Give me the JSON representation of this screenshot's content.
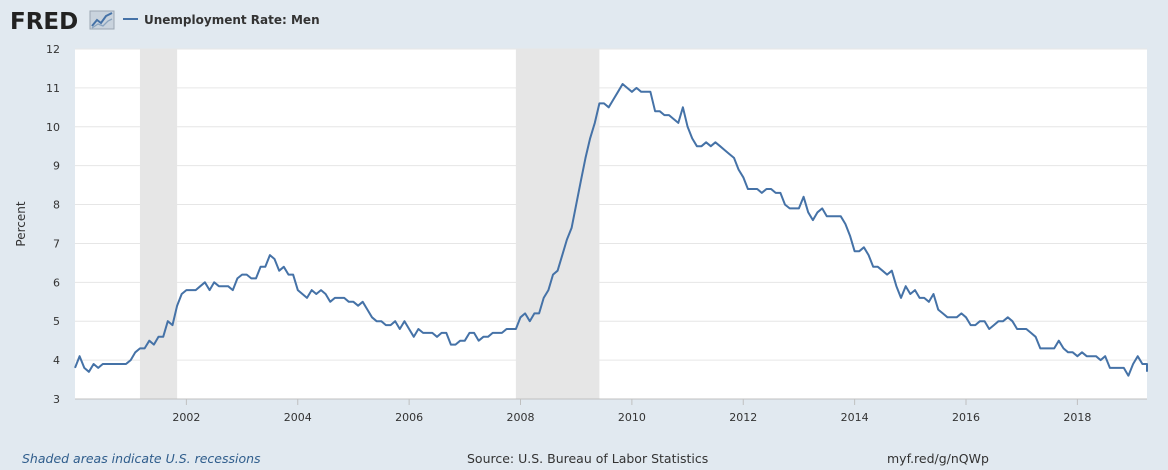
{
  "header": {
    "logo_text": "FRED",
    "legend_label": "Unemployment Rate: Men"
  },
  "footer": {
    "recession_note": "Shaded areas indicate U.S. recessions",
    "source": "Source: U.S. Bureau of Labor Statistics",
    "short_url": "myf.red/g/nQWp"
  },
  "colors": {
    "background": "#e1e9f0",
    "plot_area": "#ffffff",
    "series": "#4572a7",
    "recession_shade": "#e6e6e6",
    "gridline": "#e6e6e6"
  },
  "chart_data": {
    "type": "line",
    "title": "",
    "xlabel": "",
    "ylabel": "Percent",
    "ylim": [
      3,
      12
    ],
    "xlim": [
      "2000-01",
      "2019-04"
    ],
    "grid": true,
    "legend": "top-left",
    "yticks": [
      "3",
      "4",
      "5",
      "6",
      "7",
      "8",
      "9",
      "10",
      "11",
      "12"
    ],
    "xticks": [
      {
        "date": "2002-01",
        "label": "2002"
      },
      {
        "date": "2004-01",
        "label": "2004"
      },
      {
        "date": "2006-01",
        "label": "2006"
      },
      {
        "date": "2008-01",
        "label": "2008"
      },
      {
        "date": "2010-01",
        "label": "2010"
      },
      {
        "date": "2012-01",
        "label": "2012"
      },
      {
        "date": "2014-01",
        "label": "2014"
      },
      {
        "date": "2016-01",
        "label": "2016"
      },
      {
        "date": "2018-01",
        "label": "2018"
      }
    ],
    "recessions": [
      {
        "start": "2001-03",
        "end": "2001-11"
      },
      {
        "start": "2007-12",
        "end": "2009-06"
      }
    ],
    "series": [
      {
        "name": "Unemployment Rate: Men",
        "points": [
          [
            "2000-01",
            3.8
          ],
          [
            "2000-02",
            4.1
          ],
          [
            "2000-03",
            3.8
          ],
          [
            "2000-04",
            3.7
          ],
          [
            "2000-05",
            3.9
          ],
          [
            "2000-06",
            3.8
          ],
          [
            "2000-07",
            3.9
          ],
          [
            "2000-08",
            3.9
          ],
          [
            "2000-09",
            3.9
          ],
          [
            "2000-10",
            3.9
          ],
          [
            "2000-11",
            3.9
          ],
          [
            "2000-12",
            3.9
          ],
          [
            "2001-01",
            4.0
          ],
          [
            "2001-02",
            4.2
          ],
          [
            "2001-03",
            4.3
          ],
          [
            "2001-04",
            4.3
          ],
          [
            "2001-05",
            4.5
          ],
          [
            "2001-06",
            4.4
          ],
          [
            "2001-07",
            4.6
          ],
          [
            "2001-08",
            4.6
          ],
          [
            "2001-09",
            5.0
          ],
          [
            "2001-10",
            4.9
          ],
          [
            "2001-11",
            5.4
          ],
          [
            "2001-12",
            5.7
          ],
          [
            "2002-01",
            5.8
          ],
          [
            "2002-02",
            5.8
          ],
          [
            "2002-03",
            5.8
          ],
          [
            "2002-04",
            5.9
          ],
          [
            "2002-05",
            6.0
          ],
          [
            "2002-06",
            5.8
          ],
          [
            "2002-07",
            6.0
          ],
          [
            "2002-08",
            5.9
          ],
          [
            "2002-09",
            5.9
          ],
          [
            "2002-10",
            5.9
          ],
          [
            "2002-11",
            5.8
          ],
          [
            "2002-12",
            6.1
          ],
          [
            "2003-01",
            6.2
          ],
          [
            "2003-02",
            6.2
          ],
          [
            "2003-03",
            6.1
          ],
          [
            "2003-04",
            6.1
          ],
          [
            "2003-05",
            6.4
          ],
          [
            "2003-06",
            6.4
          ],
          [
            "2003-07",
            6.7
          ],
          [
            "2003-08",
            6.6
          ],
          [
            "2003-09",
            6.3
          ],
          [
            "2003-10",
            6.4
          ],
          [
            "2003-11",
            6.2
          ],
          [
            "2003-12",
            6.2
          ],
          [
            "2004-01",
            5.8
          ],
          [
            "2004-02",
            5.7
          ],
          [
            "2004-03",
            5.6
          ],
          [
            "2004-04",
            5.8
          ],
          [
            "2004-05",
            5.7
          ],
          [
            "2004-06",
            5.8
          ],
          [
            "2004-07",
            5.7
          ],
          [
            "2004-08",
            5.5
          ],
          [
            "2004-09",
            5.6
          ],
          [
            "2004-10",
            5.6
          ],
          [
            "2004-11",
            5.6
          ],
          [
            "2004-12",
            5.5
          ],
          [
            "2005-01",
            5.5
          ],
          [
            "2005-02",
            5.4
          ],
          [
            "2005-03",
            5.5
          ],
          [
            "2005-04",
            5.3
          ],
          [
            "2005-05",
            5.1
          ],
          [
            "2005-06",
            5.0
          ],
          [
            "2005-07",
            5.0
          ],
          [
            "2005-08",
            4.9
          ],
          [
            "2005-09",
            4.9
          ],
          [
            "2005-10",
            5.0
          ],
          [
            "2005-11",
            4.8
          ],
          [
            "2005-12",
            5.0
          ],
          [
            "2006-01",
            4.8
          ],
          [
            "2006-02",
            4.6
          ],
          [
            "2006-03",
            4.8
          ],
          [
            "2006-04",
            4.7
          ],
          [
            "2006-05",
            4.7
          ],
          [
            "2006-06",
            4.7
          ],
          [
            "2006-07",
            4.6
          ],
          [
            "2006-08",
            4.7
          ],
          [
            "2006-09",
            4.7
          ],
          [
            "2006-10",
            4.4
          ],
          [
            "2006-11",
            4.4
          ],
          [
            "2006-12",
            4.5
          ],
          [
            "2007-01",
            4.5
          ],
          [
            "2007-02",
            4.7
          ],
          [
            "2007-03",
            4.7
          ],
          [
            "2007-04",
            4.5
          ],
          [
            "2007-05",
            4.6
          ],
          [
            "2007-06",
            4.6
          ],
          [
            "2007-07",
            4.7
          ],
          [
            "2007-08",
            4.7
          ],
          [
            "2007-09",
            4.7
          ],
          [
            "2007-10",
            4.8
          ],
          [
            "2007-11",
            4.8
          ],
          [
            "2007-12",
            4.8
          ],
          [
            "2008-01",
            5.1
          ],
          [
            "2008-02",
            5.2
          ],
          [
            "2008-03",
            5.0
          ],
          [
            "2008-04",
            5.2
          ],
          [
            "2008-05",
            5.2
          ],
          [
            "2008-06",
            5.6
          ],
          [
            "2008-07",
            5.8
          ],
          [
            "2008-08",
            6.2
          ],
          [
            "2008-09",
            6.3
          ],
          [
            "2008-10",
            6.7
          ],
          [
            "2008-11",
            7.1
          ],
          [
            "2008-12",
            7.4
          ],
          [
            "2009-01",
            8.0
          ],
          [
            "2009-02",
            8.6
          ],
          [
            "2009-03",
            9.2
          ],
          [
            "2009-04",
            9.7
          ],
          [
            "2009-05",
            10.1
          ],
          [
            "2009-06",
            10.6
          ],
          [
            "2009-07",
            10.6
          ],
          [
            "2009-08",
            10.5
          ],
          [
            "2009-09",
            10.7
          ],
          [
            "2009-10",
            10.9
          ],
          [
            "2009-11",
            11.1
          ],
          [
            "2009-12",
            11.0
          ],
          [
            "2010-01",
            10.9
          ],
          [
            "2010-02",
            11.0
          ],
          [
            "2010-03",
            10.9
          ],
          [
            "2010-04",
            10.9
          ],
          [
            "2010-05",
            10.9
          ],
          [
            "2010-06",
            10.4
          ],
          [
            "2010-07",
            10.4
          ],
          [
            "2010-08",
            10.3
          ],
          [
            "2010-09",
            10.3
          ],
          [
            "2010-10",
            10.2
          ],
          [
            "2010-11",
            10.1
          ],
          [
            "2010-12",
            10.5
          ],
          [
            "2011-01",
            10.0
          ],
          [
            "2011-02",
            9.7
          ],
          [
            "2011-03",
            9.5
          ],
          [
            "2011-04",
            9.5
          ],
          [
            "2011-05",
            9.6
          ],
          [
            "2011-06",
            9.5
          ],
          [
            "2011-07",
            9.6
          ],
          [
            "2011-08",
            9.5
          ],
          [
            "2011-09",
            9.4
          ],
          [
            "2011-10",
            9.3
          ],
          [
            "2011-11",
            9.2
          ],
          [
            "2011-12",
            8.9
          ],
          [
            "2012-01",
            8.7
          ],
          [
            "2012-02",
            8.4
          ],
          [
            "2012-03",
            8.4
          ],
          [
            "2012-04",
            8.4
          ],
          [
            "2012-05",
            8.3
          ],
          [
            "2012-06",
            8.4
          ],
          [
            "2012-07",
            8.4
          ],
          [
            "2012-08",
            8.3
          ],
          [
            "2012-09",
            8.3
          ],
          [
            "2012-10",
            8.0
          ],
          [
            "2012-11",
            7.9
          ],
          [
            "2012-12",
            7.9
          ],
          [
            "2013-01",
            7.9
          ],
          [
            "2013-02",
            8.2
          ],
          [
            "2013-03",
            7.8
          ],
          [
            "2013-04",
            7.6
          ],
          [
            "2013-05",
            7.8
          ],
          [
            "2013-06",
            7.9
          ],
          [
            "2013-07",
            7.7
          ],
          [
            "2013-08",
            7.7
          ],
          [
            "2013-09",
            7.7
          ],
          [
            "2013-10",
            7.7
          ],
          [
            "2013-11",
            7.5
          ],
          [
            "2013-12",
            7.2
          ],
          [
            "2014-01",
            6.8
          ],
          [
            "2014-02",
            6.8
          ],
          [
            "2014-03",
            6.9
          ],
          [
            "2014-04",
            6.7
          ],
          [
            "2014-05",
            6.4
          ],
          [
            "2014-06",
            6.4
          ],
          [
            "2014-07",
            6.3
          ],
          [
            "2014-08",
            6.2
          ],
          [
            "2014-09",
            6.3
          ],
          [
            "2014-10",
            5.9
          ],
          [
            "2014-11",
            5.6
          ],
          [
            "2014-12",
            5.9
          ],
          [
            "2015-01",
            5.7
          ],
          [
            "2015-02",
            5.8
          ],
          [
            "2015-03",
            5.6
          ],
          [
            "2015-04",
            5.6
          ],
          [
            "2015-05",
            5.5
          ],
          [
            "2015-06",
            5.7
          ],
          [
            "2015-07",
            5.3
          ],
          [
            "2015-08",
            5.2
          ],
          [
            "2015-09",
            5.1
          ],
          [
            "2015-10",
            5.1
          ],
          [
            "2015-11",
            5.1
          ],
          [
            "2015-12",
            5.2
          ],
          [
            "2016-01",
            5.1
          ],
          [
            "2016-02",
            4.9
          ],
          [
            "2016-03",
            4.9
          ],
          [
            "2016-04",
            5.0
          ],
          [
            "2016-05",
            5.0
          ],
          [
            "2016-06",
            4.8
          ],
          [
            "2016-07",
            4.9
          ],
          [
            "2016-08",
            5.0
          ],
          [
            "2016-09",
            5.0
          ],
          [
            "2016-10",
            5.1
          ],
          [
            "2016-11",
            5.0
          ],
          [
            "2016-12",
            4.8
          ],
          [
            "2017-01",
            4.8
          ],
          [
            "2017-02",
            4.8
          ],
          [
            "2017-03",
            4.7
          ],
          [
            "2017-04",
            4.6
          ],
          [
            "2017-05",
            4.3
          ],
          [
            "2017-06",
            4.3
          ],
          [
            "2017-07",
            4.3
          ],
          [
            "2017-08",
            4.3
          ],
          [
            "2017-09",
            4.5
          ],
          [
            "2017-10",
            4.3
          ],
          [
            "2017-11",
            4.2
          ],
          [
            "2017-12",
            4.2
          ],
          [
            "2018-01",
            4.1
          ],
          [
            "2018-02",
            4.2
          ],
          [
            "2018-03",
            4.1
          ],
          [
            "2018-04",
            4.1
          ],
          [
            "2018-05",
            4.1
          ],
          [
            "2018-06",
            4.0
          ],
          [
            "2018-07",
            4.1
          ],
          [
            "2018-08",
            3.8
          ],
          [
            "2018-09",
            3.8
          ],
          [
            "2018-10",
            3.8
          ],
          [
            "2018-11",
            3.8
          ],
          [
            "2018-12",
            3.6
          ],
          [
            "2019-01",
            3.9
          ],
          [
            "2019-02",
            4.1
          ],
          [
            "2019-03",
            3.9
          ],
          [
            "2019-04",
            3.9
          ],
          [
            "2019-05",
            3.7
          ]
        ]
      }
    ]
  }
}
